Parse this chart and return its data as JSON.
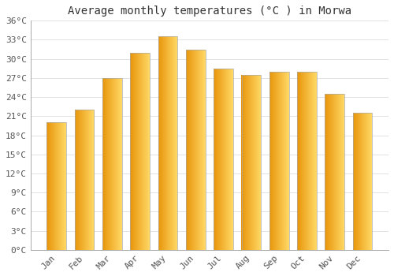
{
  "title": "Average monthly temperatures (°C ) in Morwa",
  "months": [
    "Jan",
    "Feb",
    "Mar",
    "Apr",
    "May",
    "Jun",
    "Jul",
    "Aug",
    "Sep",
    "Oct",
    "Nov",
    "Dec"
  ],
  "values": [
    20,
    22,
    27,
    31,
    33.5,
    31.5,
    28.5,
    27.5,
    28,
    28,
    24.5,
    21.5
  ],
  "bar_color_left": "#E8950A",
  "bar_color_right": "#FFD966",
  "bar_edge_color": "#AAAAAA",
  "background_color": "#FFFFFF",
  "grid_color": "#DDDDDD",
  "ylim": [
    0,
    36
  ],
  "yticks": [
    0,
    3,
    6,
    9,
    12,
    15,
    18,
    21,
    24,
    27,
    30,
    33,
    36
  ],
  "ytick_labels": [
    "0°C",
    "3°C",
    "6°C",
    "9°C",
    "12°C",
    "15°C",
    "18°C",
    "21°C",
    "24°C",
    "27°C",
    "30°C",
    "33°C",
    "36°C"
  ],
  "title_fontsize": 10,
  "tick_fontsize": 8,
  "title_color": "#333333",
  "tick_color": "#555555",
  "bar_width": 0.7,
  "figsize": [
    5.0,
    3.5
  ],
  "dpi": 100
}
